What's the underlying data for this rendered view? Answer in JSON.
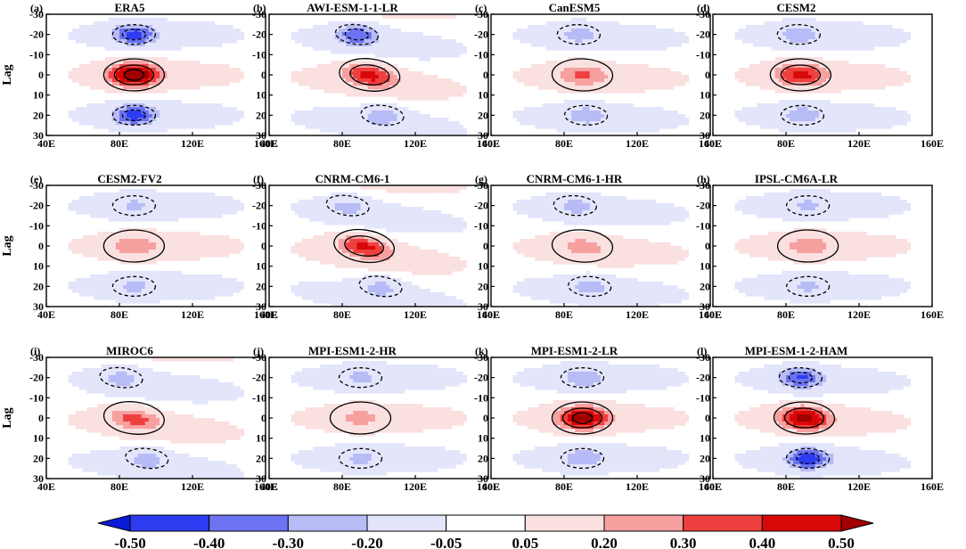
{
  "chart_data": {
    "type": "heatmap",
    "description_title": "",
    "ylabel": "Lag",
    "x_tick_labels": [
      "40E",
      "80E",
      "120E",
      "160E"
    ],
    "x_ticks": [
      40,
      80,
      120,
      160
    ],
    "y_tick_labels": [
      "-30",
      "-20",
      "-10",
      "0",
      "10",
      "20",
      "30"
    ],
    "y_ticks": [
      -30,
      -20,
      -10,
      0,
      10,
      20,
      30
    ],
    "xlim": [
      40,
      160
    ],
    "ylim": [
      -30,
      30
    ],
    "colorbar": {
      "levels": [
        -0.5,
        -0.4,
        -0.3,
        -0.2,
        -0.05,
        0.05,
        0.2,
        0.3,
        0.4,
        0.5
      ],
      "labels": [
        "-0.50",
        "-0.40",
        "-0.30",
        "-0.20",
        "-0.05",
        "0.05",
        "0.20",
        "0.30",
        "0.40",
        "0.50"
      ],
      "colors": [
        "#0a1bd6",
        "#2d3cf0",
        "#6b73f2",
        "#b7bbf6",
        "#e3e5fb",
        "#ffffff",
        "#fbe0e0",
        "#f6a0a0",
        "#ef4040",
        "#d80808",
        "#a00000"
      ]
    },
    "panels": [
      {
        "label": "(a)",
        "title": "ERA5",
        "center_lon": 88,
        "pos_amp": 0.52,
        "neg_upper": -0.35,
        "neg_lower": -0.36,
        "tilt": 0.0
      },
      {
        "label": "(b)",
        "title": "AWI-ESM-1-1-LR",
        "center_lon": 95,
        "pos_amp": 0.36,
        "neg_upper": -0.31,
        "neg_lower": -0.18,
        "tilt": 0.35
      },
      {
        "label": "(c)",
        "title": "CanESM5",
        "center_lon": 90,
        "pos_amp": 0.22,
        "neg_upper": -0.15,
        "neg_lower": -0.17,
        "tilt": 0.1
      },
      {
        "label": "(d)",
        "title": "CESM2",
        "center_lon": 88,
        "pos_amp": 0.34,
        "neg_upper": -0.18,
        "neg_lower": -0.17,
        "tilt": 0.05
      },
      {
        "label": "(e)",
        "title": "CESM2-FV2",
        "center_lon": 88,
        "pos_amp": 0.18,
        "neg_upper": -0.12,
        "neg_lower": -0.13,
        "tilt": 0.0
      },
      {
        "label": "(f)",
        "title": "CNRM-CM6-1",
        "center_lon": 92,
        "pos_amp": 0.36,
        "neg_upper": -0.16,
        "neg_lower": -0.17,
        "tilt": 0.45
      },
      {
        "label": "(g)",
        "title": "CNRM-CM6-1-HR",
        "center_lon": 90,
        "pos_amp": 0.16,
        "neg_upper": -0.15,
        "neg_lower": -0.15,
        "tilt": 0.2
      },
      {
        "label": "(h)",
        "title": "IPSL-CM6A-LR",
        "center_lon": 92,
        "pos_amp": 0.16,
        "neg_upper": -0.12,
        "neg_lower": -0.12,
        "tilt": 0.0
      },
      {
        "label": "(i)",
        "title": "MIROC6",
        "center_lon": 88,
        "pos_amp": 0.26,
        "neg_upper": -0.16,
        "neg_lower": -0.17,
        "tilt": 0.35
      },
      {
        "label": "(j)",
        "title": "MPI-ESM1-2-HR",
        "center_lon": 90,
        "pos_amp": 0.14,
        "neg_upper": -0.13,
        "neg_lower": -0.13,
        "tilt": 0.0
      },
      {
        "label": "(k)",
        "title": "MPI-ESM1-2-LR",
        "center_lon": 90,
        "pos_amp": 0.47,
        "neg_upper": -0.18,
        "neg_lower": -0.18,
        "tilt": 0.0
      },
      {
        "label": "(l)",
        "title": "MPI-ESM-1-2-HAM",
        "center_lon": 90,
        "pos_amp": 0.45,
        "neg_upper": -0.32,
        "neg_lower": -0.37,
        "tilt": 0.1
      }
    ]
  }
}
